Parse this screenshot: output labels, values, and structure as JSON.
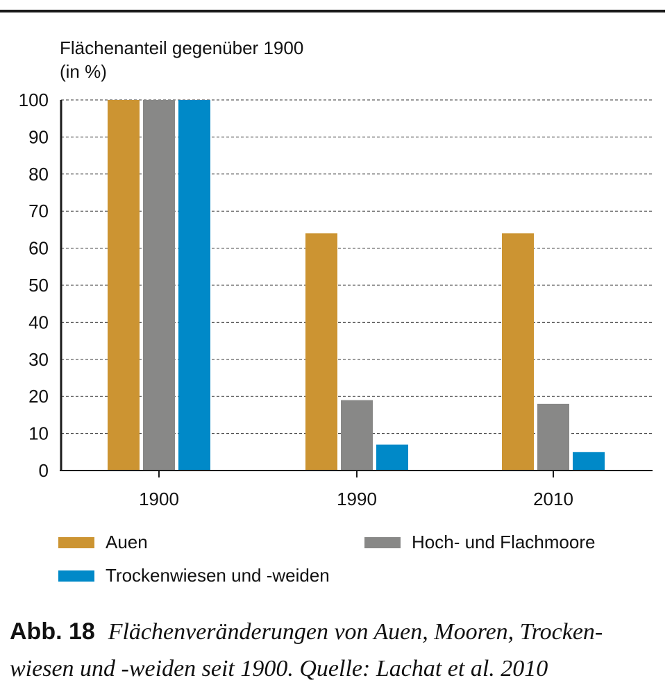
{
  "chart_data": {
    "type": "bar",
    "ylabel_line1": "Flächenanteil gegenüber 1900",
    "ylabel_line2": "(in %)",
    "categories": [
      "1900",
      "1990",
      "2010"
    ],
    "ylim": [
      0,
      100
    ],
    "yticks": [
      0,
      10,
      20,
      30,
      40,
      50,
      60,
      70,
      80,
      90,
      100
    ],
    "grid": true,
    "series": [
      {
        "name": "Auen",
        "color": "#cc9432",
        "values": [
          100,
          64,
          64
        ]
      },
      {
        "name": "Hoch- und Flachmoore",
        "color": "#888887",
        "values": [
          100,
          19,
          18
        ]
      },
      {
        "name": "Trockenwiesen und -weiden",
        "color": "#0089c8",
        "values": [
          100,
          7,
          5
        ]
      }
    ]
  },
  "caption": {
    "label": "Abb. 18",
    "text_line1": "Flächenveränderungen von Auen, Mooren, Trocken-",
    "text_line2": "wiesen und -weiden seit 1900. Quelle: Lachat et al. 2010"
  }
}
